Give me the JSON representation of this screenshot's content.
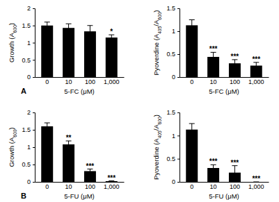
{
  "chart_data": [
    {
      "type": "bar",
      "panel": "A",
      "ylabel": "Growth (A600)",
      "xlabel": "5-FC (μM)",
      "categories": [
        "0",
        "10",
        "100",
        "1,000"
      ],
      "values": [
        1.5,
        1.43,
        1.33,
        1.15
      ],
      "errors": [
        0.1,
        0.12,
        0.17,
        0.08
      ],
      "significance": [
        null,
        null,
        null,
        "*"
      ],
      "color": "#000000",
      "ylim": [
        0,
        2
      ],
      "yticks": [
        0,
        0.5,
        1,
        1.5,
        2
      ],
      "grid": false
    },
    {
      "type": "bar",
      "ylabel": "Pyoverdine (A405/A600)",
      "xlabel": "5-FC (μM)",
      "categories": [
        "0",
        "10",
        "100",
        "1,000"
      ],
      "values": [
        1.13,
        0.44,
        0.3,
        0.25
      ],
      "errors": [
        0.12,
        0.1,
        0.08,
        0.07
      ],
      "significance": [
        null,
        "***",
        "***",
        "***"
      ],
      "color": "#000000",
      "ylim": [
        0,
        1.5
      ],
      "yticks": [
        0,
        0.5,
        1,
        1.5
      ],
      "grid": false
    },
    {
      "type": "bar",
      "panel": "B",
      "ylabel": "Growth (A600)",
      "xlabel": "5-FU (μM)",
      "categories": [
        "0",
        "10",
        "100",
        "1,000"
      ],
      "values": [
        1.6,
        1.08,
        0.31,
        0.02
      ],
      "errors": [
        0.1,
        0.1,
        0.06,
        0.01
      ],
      "significance": [
        null,
        "**",
        "***",
        "***"
      ],
      "color": "#000000",
      "ylim": [
        0,
        2
      ],
      "yticks": [
        0,
        0.5,
        1,
        1.5,
        2
      ],
      "grid": false
    },
    {
      "type": "bar",
      "ylabel": "Pyoverdine (A405/A600)",
      "xlabel": "5-FU (μM)",
      "categories": [
        "0",
        "10",
        "100",
        "1,000"
      ],
      "values": [
        1.13,
        0.3,
        0.2,
        0.0
      ],
      "errors": [
        0.13,
        0.07,
        0.15,
        0.0
      ],
      "significance": [
        null,
        "***",
        "***",
        "***"
      ],
      "color": "#000000",
      "ylim": [
        0,
        1.5
      ],
      "yticks": [
        0,
        0.5,
        1,
        1.5
      ],
      "grid": false
    }
  ]
}
